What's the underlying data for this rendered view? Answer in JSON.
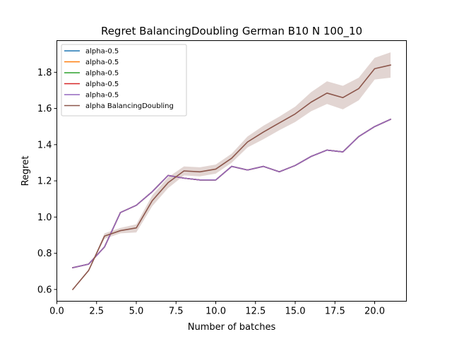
{
  "chart_data": {
    "type": "line",
    "title": "Regret BalancingDoubling German B10 N 100_10",
    "xlabel": "Number of batches",
    "ylabel": "Regret",
    "xlim": [
      0.0,
      22.0
    ],
    "ylim": [
      0.535,
      1.975
    ],
    "xticks": [
      0.0,
      2.5,
      5.0,
      7.5,
      10.0,
      12.5,
      15.0,
      17.5,
      20.0
    ],
    "xtick_labels": [
      "0.0",
      "2.5",
      "5.0",
      "7.5",
      "10.0",
      "12.5",
      "15.0",
      "17.5",
      "20.0"
    ],
    "yticks": [
      0.6,
      0.8,
      1.0,
      1.2,
      1.4,
      1.6,
      1.8
    ],
    "ytick_labels": [
      "0.6",
      "0.8",
      "1.0",
      "1.2",
      "1.4",
      "1.6",
      "1.8"
    ],
    "grid": false,
    "legend_position": "top-left",
    "x": [
      1,
      2,
      3,
      4,
      5,
      6,
      7,
      8,
      9,
      10,
      11,
      12,
      13,
      14,
      15,
      16,
      17,
      18,
      19,
      20,
      21
    ],
    "series": [
      {
        "name": "alpha-0.5",
        "color": "#1f77b4",
        "values": [
          0.72,
          0.74,
          0.835,
          1.025,
          1.065,
          1.14,
          1.23,
          1.215,
          1.205,
          1.205,
          1.28,
          1.26,
          1.28,
          1.25,
          1.285,
          1.335,
          1.37,
          1.36,
          1.445,
          1.5,
          1.54
        ]
      },
      {
        "name": "alpha-0.5",
        "color": "#ff7f0e",
        "values": [
          0.72,
          0.74,
          0.835,
          1.025,
          1.065,
          1.14,
          1.23,
          1.215,
          1.205,
          1.205,
          1.28,
          1.26,
          1.28,
          1.25,
          1.285,
          1.335,
          1.37,
          1.36,
          1.445,
          1.5,
          1.54
        ]
      },
      {
        "name": "alpha-0.5",
        "color": "#2ca02c",
        "values": [
          0.72,
          0.74,
          0.835,
          1.025,
          1.065,
          1.14,
          1.23,
          1.215,
          1.205,
          1.205,
          1.28,
          1.26,
          1.28,
          1.25,
          1.285,
          1.335,
          1.37,
          1.36,
          1.445,
          1.5,
          1.54
        ]
      },
      {
        "name": "alpha-0.5",
        "color": "#d62728",
        "values": [
          0.72,
          0.74,
          0.835,
          1.025,
          1.065,
          1.14,
          1.23,
          1.215,
          1.205,
          1.205,
          1.28,
          1.26,
          1.28,
          1.25,
          1.285,
          1.335,
          1.37,
          1.36,
          1.445,
          1.5,
          1.54
        ]
      },
      {
        "name": "alpha-0.5",
        "color": "#9467bd",
        "values": [
          0.72,
          0.74,
          0.835,
          1.025,
          1.065,
          1.14,
          1.23,
          1.215,
          1.205,
          1.205,
          1.28,
          1.26,
          1.28,
          1.25,
          1.285,
          1.335,
          1.37,
          1.36,
          1.445,
          1.5,
          1.54
        ]
      },
      {
        "name": "alpha BalancingDoubling",
        "color": "#8c564b",
        "values": [
          0.6,
          0.705,
          0.895,
          0.925,
          0.94,
          1.09,
          1.19,
          1.255,
          1.25,
          1.265,
          1.325,
          1.415,
          1.47,
          1.52,
          1.57,
          1.635,
          1.685,
          1.66,
          1.71,
          1.82,
          1.84
        ],
        "band_lower": [
          0.6,
          0.705,
          0.88,
          0.91,
          0.915,
          1.06,
          1.16,
          1.23,
          1.225,
          1.24,
          1.3,
          1.385,
          1.43,
          1.48,
          1.525,
          1.585,
          1.625,
          1.595,
          1.645,
          1.76,
          1.77
        ],
        "band_upper": [
          0.6,
          0.705,
          0.91,
          0.94,
          0.96,
          1.12,
          1.22,
          1.28,
          1.275,
          1.29,
          1.35,
          1.445,
          1.505,
          1.555,
          1.61,
          1.69,
          1.75,
          1.725,
          1.77,
          1.88,
          1.91
        ]
      }
    ]
  }
}
